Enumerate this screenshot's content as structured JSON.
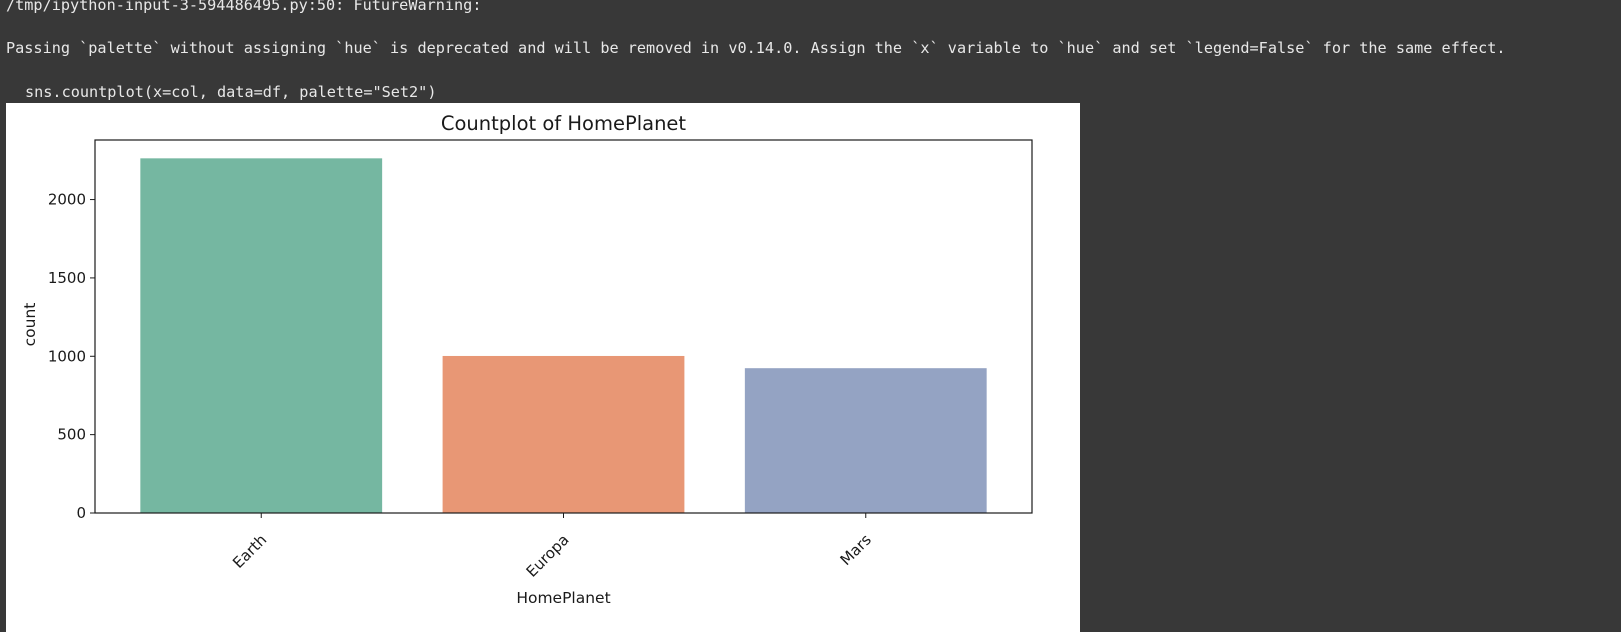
{
  "output": {
    "warning_path": "/tmp/ipython-input-3-594486495.py:50: FutureWarning:",
    "warning_message": "Passing `palette` without assigning `hue` is deprecated and will be removed in v0.14.0. Assign the `x` variable to `hue` and set `legend=False` for the same effect.",
    "warning_code": "sns.countplot(x=col, data=df, palette=\"Set2\")"
  },
  "colors": {
    "background": "#383838",
    "text": "#e8e8e8",
    "earth": "#75b7a1",
    "europa": "#e89775",
    "mars": "#94a3c3"
  },
  "chart_data": {
    "type": "bar",
    "title": "Countplot of HomePlanet",
    "xlabel": "HomePlanet",
    "ylabel": "count",
    "categories": [
      "Earth",
      "Europa",
      "Mars"
    ],
    "values": [
      2263,
      1002,
      924
    ],
    "colors": [
      "#75b7a1",
      "#e89775",
      "#94a3c3"
    ],
    "ylim": [
      0,
      2380
    ],
    "yticks": [
      0,
      500,
      1000,
      1500,
      2000
    ],
    "ytick_labels": [
      "0",
      "500",
      "1000",
      "1500",
      "2000"
    ],
    "grid": false,
    "legend": false,
    "xtick_rotation": "45 degrees"
  }
}
